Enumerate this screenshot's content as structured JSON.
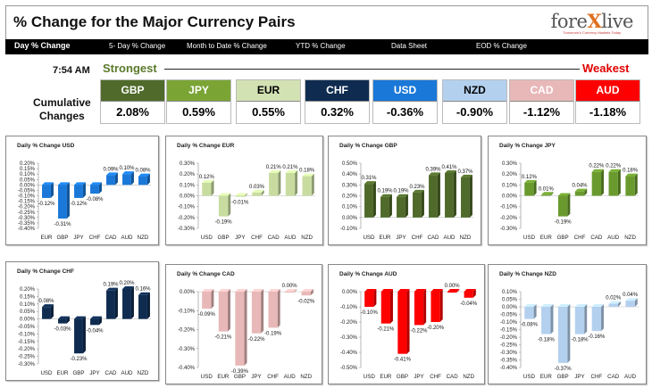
{
  "header": {
    "title": "% Change for the Major Currency Pairs",
    "logo_left": "fore",
    "logo_x": "X",
    "logo_right": "live",
    "tagline": "Tomorrow's Currency Markets Today"
  },
  "tabs": [
    "Day % Change",
    "5- Day % Change",
    "Month to Date % Change",
    "YTD % Change",
    "Data Sheet",
    "EOD % Change"
  ],
  "summary": {
    "time": "7:54 AM",
    "strongest": "Strongest",
    "weakest": "Weakest",
    "cumulative_line1": "Cumulative",
    "cumulative_line2": "Changes",
    "pairs": [
      {
        "name": "GBP",
        "value": "2.08%",
        "color": "#4f6a2a",
        "text": "#ffffff"
      },
      {
        "name": "JPY",
        "value": "0.59%",
        "color": "#7aa535",
        "text": "#ffffff"
      },
      {
        "name": "EUR",
        "value": "0.55%",
        "color": "#d2e2b2",
        "text": "#000000"
      },
      {
        "name": "CHF",
        "value": "0.32%",
        "color": "#0f2c50",
        "text": "#ffffff"
      },
      {
        "name": "USD",
        "value": "-0.36%",
        "color": "#1a78d8",
        "text": "#ffffff"
      },
      {
        "name": "NZD",
        "value": "-0.90%",
        "color": "#b4d0ef",
        "text": "#000000"
      },
      {
        "name": "CAD",
        "value": "-1.12%",
        "color": "#e8b8b8",
        "text": "#ffffff"
      },
      {
        "name": "AUD",
        "value": "-1.18%",
        "color": "#ff0000",
        "text": "#ffffff"
      }
    ]
  },
  "chart_data": [
    {
      "type": "bar",
      "title": "Daily % Change USD",
      "categories": [
        "EUR",
        "GBP",
        "JPY",
        "CHF",
        "CAD",
        "AUD",
        "NZD"
      ],
      "values": [
        -0.12,
        -0.31,
        -0.12,
        -0.08,
        0.09,
        0.1,
        0.08
      ],
      "labels": [
        "-0.12%",
        "-0.31%",
        "-0.12%",
        "-0.08%",
        "0.09%",
        "0.10%",
        "0.08%"
      ],
      "yticks": [
        "0.20%",
        "0.15%",
        "0.10%",
        "0.05%",
        "0.00%",
        "-0.05%",
        "-0.10%",
        "-0.15%",
        "-0.20%",
        "-0.25%",
        "-0.30%",
        "-0.35%",
        "-0.40%"
      ],
      "ylim": [
        -0.4,
        0.2
      ],
      "color": "#1a78d8"
    },
    {
      "type": "bar",
      "title": "Daily % Change EUR",
      "categories": [
        "USD",
        "GBP",
        "JPY",
        "CHF",
        "CAD",
        "AUD",
        "NZD"
      ],
      "values": [
        0.12,
        -0.19,
        -0.01,
        0.03,
        0.21,
        0.21,
        0.18
      ],
      "labels": [
        "0.12%",
        "-0.19%",
        "-0.01%",
        "0.03%",
        "0.21%",
        "0.21%",
        "0.18%"
      ],
      "yticks": [
        "0.30%",
        "0.20%",
        "0.10%",
        "0.00%",
        "-0.10%",
        "-0.20%",
        "-0.30%"
      ],
      "ylim": [
        -0.3,
        0.3
      ],
      "color": "#c8dca0"
    },
    {
      "type": "bar",
      "title": "Daily % Change GBP",
      "categories": [
        "USD",
        "EUR",
        "JPY",
        "CHF",
        "CAD",
        "AUD",
        "NZD"
      ],
      "values": [
        0.31,
        0.19,
        0.19,
        0.23,
        0.39,
        0.41,
        0.37
      ],
      "labels": [
        "0.31%",
        "0.19%",
        "0.19%",
        "0.23%",
        "0.39%",
        "0.41%",
        "0.37%"
      ],
      "yticks": [
        "0.50%",
        "0.40%",
        "0.30%",
        "0.20%",
        "0.10%",
        "0.00%",
        "-0.10%"
      ],
      "ylim": [
        -0.1,
        0.5
      ],
      "color": "#4f6a2a"
    },
    {
      "type": "bar",
      "title": "Daily % Change JPY",
      "categories": [
        "USD",
        "EUR",
        "GBP",
        "CHF",
        "CAD",
        "AUD",
        "NZD"
      ],
      "values": [
        0.12,
        0.01,
        -0.19,
        0.04,
        0.22,
        0.22,
        0.18
      ],
      "labels": [
        "0.12%",
        "0.01%",
        "-0.19%",
        "0.04%",
        "0.22%",
        "0.22%",
        "0.18%"
      ],
      "yticks": [
        "0.30%",
        "0.20%",
        "0.10%",
        "0.00%",
        "-0.10%",
        "-0.20%",
        "-0.30%"
      ],
      "ylim": [
        -0.3,
        0.3
      ],
      "color": "#6a9a2e"
    },
    {
      "type": "bar",
      "title": "Daily % Change CHF",
      "categories": [
        "USD",
        "EUR",
        "GBP",
        "JPY",
        "CAD",
        "AUD",
        "NZD"
      ],
      "values": [
        0.08,
        -0.03,
        -0.23,
        -0.04,
        0.19,
        0.2,
        0.16
      ],
      "labels": [
        "0.08%",
        "-0.03%",
        "-0.23%",
        "-0.04%",
        "0.19%",
        "0.20%",
        "0.16%"
      ],
      "yticks": [
        "0.20%",
        "0.15%",
        "0.10%",
        "0.05%",
        "0.00%",
        "-0.05%",
        "-0.10%",
        "-0.15%",
        "-0.20%",
        "-0.25%",
        "-0.30%"
      ],
      "ylim": [
        -0.3,
        0.2
      ],
      "color": "#0f2c50"
    },
    {
      "type": "bar",
      "title": "Daily % Change CAD",
      "categories": [
        "USD",
        "EUR",
        "GBP",
        "JPY",
        "CHF",
        "AUD",
        "NZD"
      ],
      "values": [
        -0.09,
        -0.21,
        -0.39,
        -0.22,
        -0.19,
        0.0,
        -0.02
      ],
      "labels": [
        "-0.09%",
        "-0.21%",
        "-0.39%",
        "-0.22%",
        "-0.19%",
        "0.00%",
        "-0.02%"
      ],
      "yticks": [
        "0.00%",
        "-0.10%",
        "-0.20%",
        "-0.30%",
        "-0.40%"
      ],
      "ylim": [
        -0.4,
        0.0
      ],
      "color": "#e8b8b8"
    },
    {
      "type": "bar",
      "title": "Daily % Change AUD",
      "categories": [
        "USD",
        "EUR",
        "GBP",
        "JPY",
        "CHF",
        "CAD",
        "NZD"
      ],
      "values": [
        -0.1,
        -0.21,
        -0.41,
        -0.22,
        -0.2,
        0.0,
        -0.04
      ],
      "labels": [
        "-0.10%",
        "-0.21%",
        "-0.41%",
        "-0.22%",
        "-0.20%",
        "0.00%",
        "-0.04%"
      ],
      "yticks": [
        "0.00%",
        "-0.10%",
        "-0.20%",
        "-0.30%",
        "-0.40%",
        "-0.50%"
      ],
      "ylim": [
        -0.5,
        0.0
      ],
      "color": "#ff0000"
    },
    {
      "type": "bar",
      "title": "Daily % Change NZD",
      "categories": [
        "USD",
        "EUR",
        "GBP",
        "JPY",
        "CHF",
        "CAD",
        "AUD"
      ],
      "values": [
        -0.08,
        -0.18,
        -0.37,
        -0.18,
        -0.16,
        0.02,
        0.04
      ],
      "labels": [
        "-0.08%",
        "-0.18%",
        "-0.37%",
        "-0.18%",
        "-0.16%",
        "0.02%",
        "0.04%"
      ],
      "yticks": [
        "0.10%",
        "0.05%",
        "0.00%",
        "-0.05%",
        "-0.10%",
        "-0.15%",
        "-0.20%",
        "-0.25%",
        "-0.30%",
        "-0.35%",
        "-0.40%"
      ],
      "ylim": [
        -0.4,
        0.1
      ],
      "color": "#b4d0ef"
    }
  ]
}
